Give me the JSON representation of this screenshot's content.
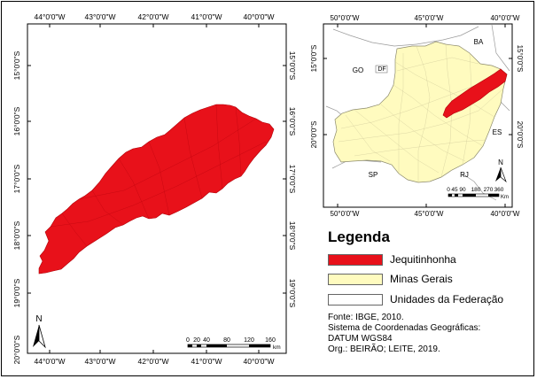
{
  "main_map": {
    "top_labels": [
      "44°0'0\"W",
      "43°0'0\"W",
      "42°0'0\"W",
      "41°0'0\"W",
      "40°0'0\"W"
    ],
    "bottom_labels": [
      "44°0'0\"W",
      "43°0'0\"W",
      "42°0'0\"W",
      "41°0'0\"W",
      "40°0'0\"W"
    ],
    "left_labels": [
      "15°0'0\"S",
      "16°0'0\"S",
      "17°0'0\"S",
      "18°0'0\"S",
      "19°0'0\"S",
      "20°0'0\"S"
    ],
    "right_labels": [
      "15°0'0\"S",
      "16°0'0\"S",
      "17°0'0\"S",
      "18°0'0\"S",
      "19°0'0\"S"
    ],
    "north_label": "N",
    "scale_labels": [
      "0",
      "20",
      "40",
      "80",
      "120",
      "160"
    ],
    "scale_unit": "km",
    "region_color": "#e8111a"
  },
  "inset_map": {
    "top_labels": [
      "50°0'0\"W",
      "45°0'0\"W",
      "40°0'0\"W"
    ],
    "bottom_labels": [
      "50°0'0\"W",
      "45°0'0\"W",
      "40°0'0\"W"
    ],
    "left_labels": [
      "15°0'0\"S",
      "20°0'0\"S"
    ],
    "right_labels": [
      "15°0'0\"S",
      "20°0'0\"S"
    ],
    "state_labels": {
      "ba": "BA",
      "go": "GO",
      "df": "DF",
      "es": "ES",
      "sp": "SP",
      "rj": "RJ"
    },
    "north_label": "N",
    "scale_labels": [
      "0",
      "45",
      "90",
      "180",
      "270",
      "360"
    ],
    "scale_unit": "Km",
    "minas_color": "#fffbbf",
    "region_color": "#e8111a"
  },
  "legend": {
    "title": "Legenda",
    "items": [
      {
        "label": "Jequitinhonha",
        "color": "#e8111a"
      },
      {
        "label": "Minas Gerais",
        "color": "#fffbbf"
      },
      {
        "label": "Unidades da Federação",
        "color": "#ffffff"
      }
    ]
  },
  "credits": {
    "source": "Fonte: IBGE, 2010.",
    "coord_system": "Sistema de Coordenadas Geográficas:",
    "datum": "DATUM WGS84",
    "organization": "Org.: BEIRÃO; LEITE, 2019."
  }
}
